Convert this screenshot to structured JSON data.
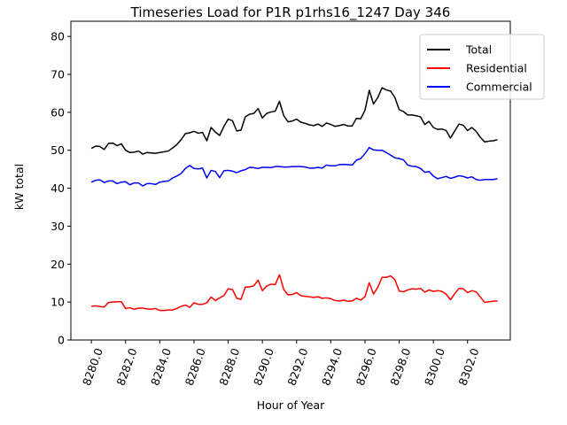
{
  "chart_data": {
    "type": "line",
    "title": "Timeseries Load for P1R p1rhs16_1247  Day 346",
    "xlabel": "Hour of Year",
    "ylabel": "kW total",
    "xlim": [
      8278.8,
      8304.5
    ],
    "ylim": [
      0,
      84
    ],
    "grid": false,
    "legend_position": "top-right",
    "x_ticks": [
      8280,
      8282,
      8284,
      8286,
      8288,
      8290,
      8292,
      8294,
      8296,
      8298,
      8300,
      8302
    ],
    "x_tick_labels": [
      "8280.0",
      "8282.0",
      "8284.0",
      "8286.0",
      "8288.0",
      "8290.0",
      "8292.0",
      "8294.0",
      "8296.0",
      "8298.0",
      "8300.0",
      "8302.0"
    ],
    "y_ticks": [
      0,
      10,
      20,
      30,
      40,
      50,
      60,
      70,
      80
    ],
    "y_tick_labels": [
      "0",
      "10",
      "20",
      "30",
      "40",
      "50",
      "60",
      "70",
      "80"
    ],
    "x_start": 8280,
    "x_step": 0.25,
    "series": [
      {
        "name": "Total",
        "color": "#000000",
        "values": [
          50.5,
          51.1,
          51.0,
          50.2,
          51.8,
          51.9,
          51.2,
          51.7,
          50.0,
          49.4,
          49.5,
          49.8,
          49.0,
          49.4,
          49.3,
          49.2,
          49.4,
          49.6,
          49.8,
          50.6,
          51.5,
          52.8,
          54.4,
          54.6,
          55.0,
          54.5,
          54.7,
          52.5,
          56.0,
          54.8,
          53.9,
          56.3,
          58.2,
          57.8,
          55.1,
          55.3,
          58.8,
          59.5,
          59.7,
          61.0,
          58.5,
          59.7,
          60.1,
          60.3,
          62.9,
          59.1,
          57.5,
          57.7,
          58.2,
          57.4,
          57.1,
          56.7,
          56.5,
          56.9,
          56.3,
          57.2,
          56.8,
          56.3,
          56.5,
          56.8,
          56.4,
          56.4,
          58.4,
          58.3,
          60.5,
          65.8,
          62.2,
          63.9,
          66.5,
          65.9,
          65.6,
          63.9,
          60.7,
          60.2,
          59.3,
          59.3,
          59.1,
          58.8,
          56.8,
          57.6,
          56.0,
          55.5,
          55.6,
          55.2,
          53.2,
          55.1,
          56.9,
          56.6,
          55.2,
          56.0,
          55.0,
          53.4,
          52.2,
          52.4,
          52.5,
          52.8
        ]
      },
      {
        "name": "Residential",
        "color": "#ff0000",
        "values": [
          8.9,
          9.0,
          8.8,
          8.7,
          9.9,
          10.0,
          10.1,
          10.1,
          8.3,
          8.5,
          8.1,
          8.4,
          8.4,
          8.2,
          8.1,
          8.3,
          7.8,
          7.8,
          7.9,
          7.9,
          8.3,
          8.9,
          9.2,
          8.6,
          9.8,
          9.4,
          9.4,
          9.8,
          11.3,
          10.4,
          11.1,
          11.7,
          13.5,
          13.3,
          11.0,
          10.7,
          13.9,
          14.0,
          14.3,
          15.8,
          13.0,
          14.2,
          14.7,
          14.6,
          17.2,
          13.3,
          11.9,
          12.0,
          12.5,
          11.7,
          11.5,
          11.4,
          11.2,
          11.4,
          11.0,
          11.1,
          10.9,
          10.4,
          10.3,
          10.5,
          10.2,
          10.3,
          11.0,
          10.5,
          11.4,
          15.1,
          12.1,
          13.9,
          16.5,
          16.5,
          16.9,
          15.9,
          12.9,
          12.7,
          13.2,
          13.5,
          13.4,
          13.6,
          12.6,
          13.2,
          12.8,
          13.0,
          12.8,
          12.1,
          10.6,
          12.2,
          13.6,
          13.5,
          12.5,
          13.0,
          12.7,
          11.3,
          9.9,
          10.1,
          10.2,
          10.3
        ]
      },
      {
        "name": "Commercial",
        "color": "#0000ff",
        "values": [
          41.6,
          42.1,
          42.2,
          41.5,
          41.9,
          41.9,
          41.2,
          41.6,
          41.7,
          40.9,
          41.4,
          41.4,
          40.6,
          41.2,
          41.2,
          41.0,
          41.6,
          41.8,
          41.9,
          42.7,
          43.2,
          43.9,
          45.2,
          46.0,
          45.2,
          45.1,
          45.3,
          42.7,
          44.7,
          44.4,
          42.8,
          44.6,
          44.7,
          44.5,
          44.1,
          44.6,
          44.9,
          45.5,
          45.4,
          45.2,
          45.5,
          45.5,
          45.4,
          45.7,
          45.7,
          45.6,
          45.6,
          45.7,
          45.7,
          45.7,
          45.6,
          45.3,
          45.3,
          45.5,
          45.3,
          46.1,
          45.9,
          45.9,
          46.2,
          46.3,
          46.2,
          46.1,
          47.4,
          47.8,
          49.1,
          50.7,
          50.1,
          50.0,
          50.0,
          49.4,
          48.7,
          48.0,
          47.8,
          47.5,
          46.1,
          45.8,
          45.7,
          45.2,
          44.2,
          44.4,
          43.2,
          42.5,
          42.8,
          43.1,
          42.6,
          42.9,
          43.3,
          43.1,
          42.7,
          43.0,
          42.3,
          42.1,
          42.3,
          42.3,
          42.3,
          42.5
        ]
      }
    ]
  }
}
